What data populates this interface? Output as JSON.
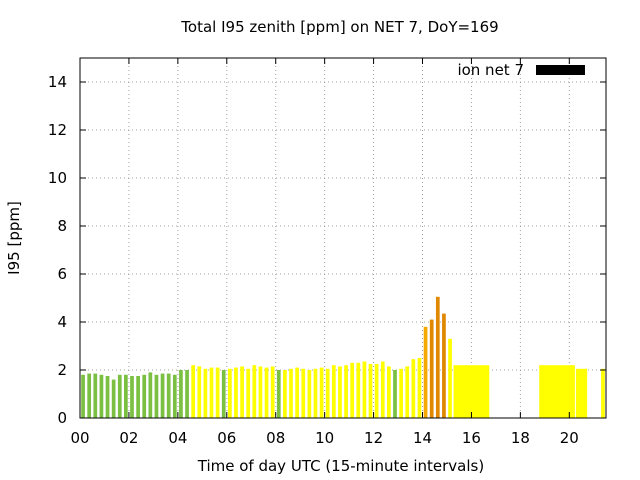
{
  "chart_data": {
    "type": "bar",
    "title": "Total I95 zenith [ppm] on NET 7, DoY=169",
    "xlabel": "Time of day UTC (15-minute intervals)",
    "ylabel": "I95 [ppm]",
    "xlim": [
      0,
      21.5
    ],
    "ylim": [
      0,
      15
    ],
    "xticks": [
      0,
      2,
      4,
      6,
      8,
      10,
      12,
      14,
      16,
      18,
      20
    ],
    "xtick_labels": [
      "00",
      "02",
      "04",
      "06",
      "08",
      "10",
      "12",
      "14",
      "16",
      "18",
      "20"
    ],
    "yticks": [
      0,
      2,
      4,
      6,
      8,
      10,
      12,
      14
    ],
    "ytick_labels": [
      "0",
      "2",
      "4",
      "6",
      "8",
      "10",
      "12",
      "14"
    ],
    "grid": true,
    "legend": {
      "label": "ion net 7",
      "color": "#000000",
      "position": "top-right"
    },
    "colors": {
      "green": "#7bc043",
      "yellow": "#ffff00",
      "orange": "#f5a800",
      "dark_orange": "#e08800"
    },
    "bars": [
      {
        "x": 0.0,
        "w": 0.25,
        "v": 1.8,
        "c": "green"
      },
      {
        "x": 0.25,
        "w": 0.25,
        "v": 1.85,
        "c": "green"
      },
      {
        "x": 0.5,
        "w": 0.25,
        "v": 1.85,
        "c": "green"
      },
      {
        "x": 0.75,
        "w": 0.25,
        "v": 1.8,
        "c": "green"
      },
      {
        "x": 1.0,
        "w": 0.25,
        "v": 1.75,
        "c": "green"
      },
      {
        "x": 1.25,
        "w": 0.25,
        "v": 1.6,
        "c": "green"
      },
      {
        "x": 1.5,
        "w": 0.25,
        "v": 1.8,
        "c": "green"
      },
      {
        "x": 1.75,
        "w": 0.25,
        "v": 1.8,
        "c": "green"
      },
      {
        "x": 2.0,
        "w": 0.25,
        "v": 1.75,
        "c": "green"
      },
      {
        "x": 2.25,
        "w": 0.25,
        "v": 1.75,
        "c": "green"
      },
      {
        "x": 2.5,
        "w": 0.25,
        "v": 1.8,
        "c": "green"
      },
      {
        "x": 2.75,
        "w": 0.25,
        "v": 1.9,
        "c": "green"
      },
      {
        "x": 3.0,
        "w": 0.25,
        "v": 1.8,
        "c": "green"
      },
      {
        "x": 3.25,
        "w": 0.25,
        "v": 1.85,
        "c": "green"
      },
      {
        "x": 3.5,
        "w": 0.25,
        "v": 1.85,
        "c": "green"
      },
      {
        "x": 3.75,
        "w": 0.25,
        "v": 1.8,
        "c": "green"
      },
      {
        "x": 4.0,
        "w": 0.25,
        "v": 2.0,
        "c": "green"
      },
      {
        "x": 4.25,
        "w": 0.25,
        "v": 2.0,
        "c": "green"
      },
      {
        "x": 4.5,
        "w": 0.25,
        "v": 2.2,
        "c": "yellow"
      },
      {
        "x": 4.75,
        "w": 0.25,
        "v": 2.15,
        "c": "yellow"
      },
      {
        "x": 5.0,
        "w": 0.25,
        "v": 2.05,
        "c": "yellow"
      },
      {
        "x": 5.25,
        "w": 0.25,
        "v": 2.1,
        "c": "yellow"
      },
      {
        "x": 5.5,
        "w": 0.25,
        "v": 2.1,
        "c": "yellow"
      },
      {
        "x": 5.75,
        "w": 0.25,
        "v": 2.0,
        "c": "green"
      },
      {
        "x": 6.0,
        "w": 0.25,
        "v": 2.05,
        "c": "yellow"
      },
      {
        "x": 6.25,
        "w": 0.25,
        "v": 2.1,
        "c": "yellow"
      },
      {
        "x": 6.5,
        "w": 0.25,
        "v": 2.15,
        "c": "yellow"
      },
      {
        "x": 6.75,
        "w": 0.25,
        "v": 2.05,
        "c": "yellow"
      },
      {
        "x": 7.0,
        "w": 0.25,
        "v": 2.2,
        "c": "yellow"
      },
      {
        "x": 7.25,
        "w": 0.25,
        "v": 2.15,
        "c": "yellow"
      },
      {
        "x": 7.5,
        "w": 0.25,
        "v": 2.1,
        "c": "yellow"
      },
      {
        "x": 7.75,
        "w": 0.25,
        "v": 2.15,
        "c": "yellow"
      },
      {
        "x": 8.0,
        "w": 0.25,
        "v": 2.0,
        "c": "green"
      },
      {
        "x": 8.25,
        "w": 0.25,
        "v": 2.0,
        "c": "yellow"
      },
      {
        "x": 8.5,
        "w": 0.25,
        "v": 2.05,
        "c": "yellow"
      },
      {
        "x": 8.75,
        "w": 0.25,
        "v": 2.1,
        "c": "yellow"
      },
      {
        "x": 9.0,
        "w": 0.25,
        "v": 2.05,
        "c": "yellow"
      },
      {
        "x": 9.25,
        "w": 0.25,
        "v": 2.0,
        "c": "yellow"
      },
      {
        "x": 9.5,
        "w": 0.25,
        "v": 2.05,
        "c": "yellow"
      },
      {
        "x": 9.75,
        "w": 0.25,
        "v": 2.1,
        "c": "yellow"
      },
      {
        "x": 10.0,
        "w": 0.25,
        "v": 2.05,
        "c": "yellow"
      },
      {
        "x": 10.25,
        "w": 0.25,
        "v": 2.2,
        "c": "yellow"
      },
      {
        "x": 10.5,
        "w": 0.25,
        "v": 2.15,
        "c": "yellow"
      },
      {
        "x": 10.75,
        "w": 0.25,
        "v": 2.2,
        "c": "yellow"
      },
      {
        "x": 11.0,
        "w": 0.25,
        "v": 2.3,
        "c": "yellow"
      },
      {
        "x": 11.25,
        "w": 0.25,
        "v": 2.3,
        "c": "yellow"
      },
      {
        "x": 11.5,
        "w": 0.25,
        "v": 2.35,
        "c": "yellow"
      },
      {
        "x": 11.75,
        "w": 0.25,
        "v": 2.25,
        "c": "yellow"
      },
      {
        "x": 12.0,
        "w": 0.25,
        "v": 2.25,
        "c": "yellow"
      },
      {
        "x": 12.25,
        "w": 0.25,
        "v": 2.35,
        "c": "yellow"
      },
      {
        "x": 12.5,
        "w": 0.25,
        "v": 2.15,
        "c": "yellow"
      },
      {
        "x": 12.75,
        "w": 0.25,
        "v": 2.0,
        "c": "green"
      },
      {
        "x": 13.0,
        "w": 0.25,
        "v": 2.05,
        "c": "yellow"
      },
      {
        "x": 13.25,
        "w": 0.25,
        "v": 2.15,
        "c": "yellow"
      },
      {
        "x": 13.5,
        "w": 0.25,
        "v": 2.45,
        "c": "yellow"
      },
      {
        "x": 13.75,
        "w": 0.25,
        "v": 2.5,
        "c": "yellow"
      },
      {
        "x": 14.0,
        "w": 0.25,
        "v": 3.8,
        "c": "orange"
      },
      {
        "x": 14.25,
        "w": 0.25,
        "v": 4.1,
        "c": "dark_orange"
      },
      {
        "x": 14.5,
        "w": 0.25,
        "v": 5.05,
        "c": "dark_orange"
      },
      {
        "x": 14.75,
        "w": 0.25,
        "v": 4.35,
        "c": "dark_orange"
      },
      {
        "x": 15.0,
        "w": 0.25,
        "v": 3.3,
        "c": "yellow"
      },
      {
        "x": 15.25,
        "w": 1.5,
        "v": 2.2,
        "c": "yellow"
      },
      {
        "x": 18.75,
        "w": 1.5,
        "v": 2.2,
        "c": "yellow"
      },
      {
        "x": 20.25,
        "w": 0.5,
        "v": 2.05,
        "c": "yellow"
      },
      {
        "x": 21.25,
        "w": 0.25,
        "v": 2.05,
        "c": "yellow"
      }
    ]
  }
}
